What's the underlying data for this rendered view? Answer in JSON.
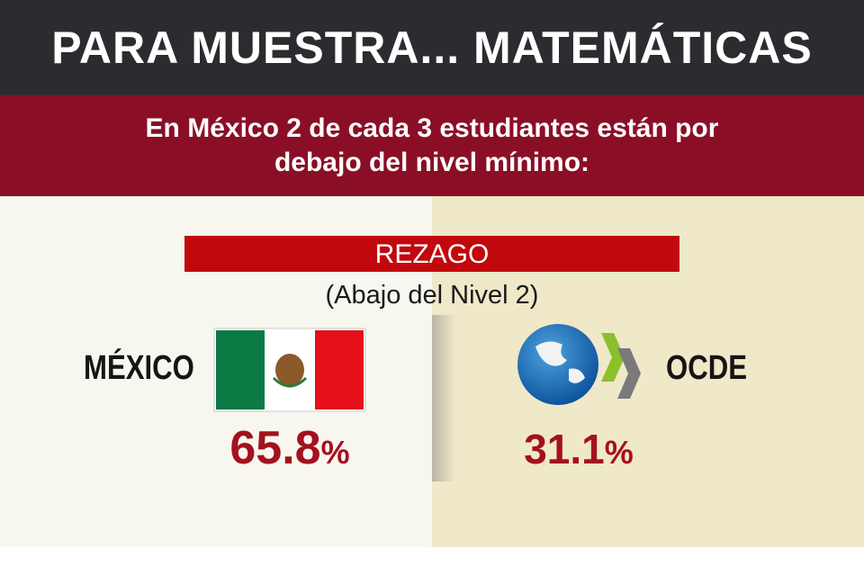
{
  "header": {
    "title": "PARA MUESTRA... MATEMÁTICAS",
    "subtitle": "En México 2 de cada 3 estudiantes están por debajo del nivel mínimo:"
  },
  "label": {
    "title": "REZAGO",
    "subtitle": "(Abajo del Nivel 2)"
  },
  "entries": [
    {
      "name": "MÉXICO",
      "value": "65.8",
      "unit": "%"
    },
    {
      "name": "OCDE",
      "value": "31.1",
      "unit": "%"
    }
  ]
}
